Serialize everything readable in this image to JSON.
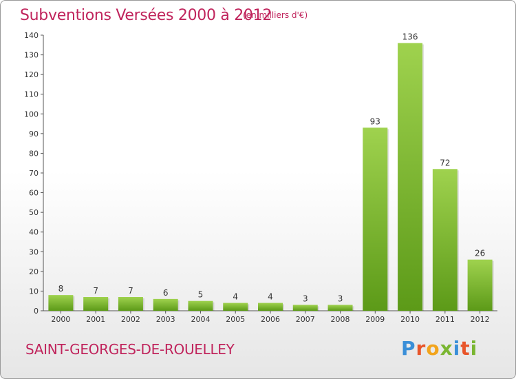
{
  "header": {
    "title": "Subventions Versées 2000 à 2012",
    "subtitle": "(en milliers d'€)"
  },
  "footer": {
    "commune": "SAINT-GEORGES-DE-ROUELLEY",
    "logo_letters": [
      {
        "char": "P",
        "color": "#3a8fd8"
      },
      {
        "char": "r",
        "color": "#e8552a"
      },
      {
        "char": "o",
        "color": "#f2a41c"
      },
      {
        "char": "x",
        "color": "#7ab631"
      },
      {
        "char": "i",
        "color": "#3a8fd8"
      },
      {
        "char": "t",
        "color": "#e8552a"
      },
      {
        "char": "i",
        "color": "#7ab631"
      }
    ]
  },
  "chart_data": {
    "type": "bar",
    "categories": [
      "2000",
      "2001",
      "2002",
      "2003",
      "2004",
      "2005",
      "2006",
      "2007",
      "2008",
      "2009",
      "2010",
      "2011",
      "2012"
    ],
    "values": [
      8,
      7,
      7,
      6,
      5,
      4,
      4,
      3,
      3,
      93,
      136,
      72,
      26
    ],
    "ylim": [
      0,
      140
    ],
    "yticks": [
      0,
      10,
      20,
      30,
      40,
      50,
      60,
      70,
      80,
      90,
      100,
      110,
      120,
      130,
      140
    ],
    "grid": false,
    "bar_color_top": "#9fd24e",
    "bar_color_bottom": "#5c9a18",
    "text_color": "#333333"
  }
}
